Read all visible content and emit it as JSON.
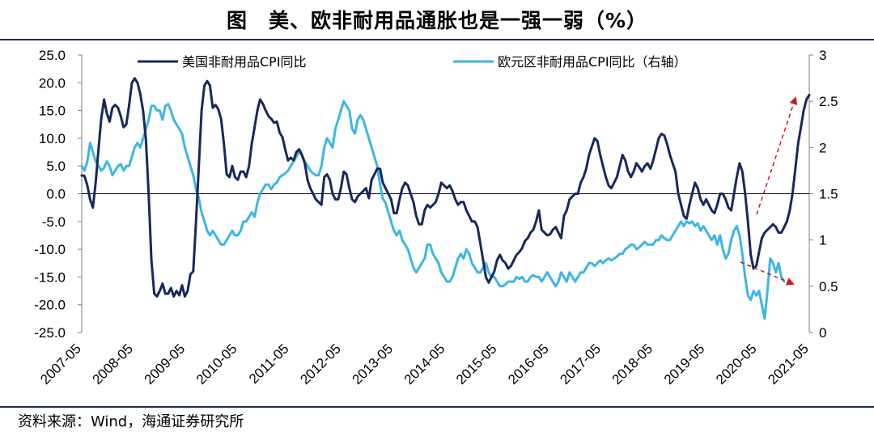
{
  "title": "图　美、欧非耐用品通胀也是一强一弱（%）",
  "source": "资料来源：Wind，海通证券研究所",
  "colors": {
    "us": "#17285e",
    "eu": "#3db6e4",
    "arrow": "#d4161c",
    "rule": "#1f2d4f"
  },
  "chart_data": {
    "type": "line",
    "x_ticks": [
      "2007-05",
      "2008-05",
      "2009-05",
      "2010-05",
      "2011-05",
      "2012-05",
      "2013-05",
      "2014-05",
      "2015-05",
      "2016-05",
      "2017-05",
      "2018-05",
      "2019-05",
      "2020-05",
      "2021-05"
    ],
    "y_left_ticks": [
      "25.0",
      "20.0",
      "15.0",
      "10.0",
      "5.0",
      "0.0",
      "-5.0",
      "-10.0",
      "-15.0",
      "-20.0",
      "-25.0"
    ],
    "y_right_ticks": [
      "3",
      "2.5",
      "2",
      "1.5",
      "1",
      "0.5",
      "0"
    ],
    "ylim_left": [
      -25,
      25
    ],
    "ylim_right": [
      0,
      3
    ],
    "grid": false,
    "legend_position": "top",
    "x_start": "2007-05",
    "series": [
      {
        "name": "美国非耐用品CPI同比",
        "axis": "left",
        "values": [
          3.3,
          3.2,
          1.5,
          -1.0,
          -2.5,
          2.0,
          8.0,
          13.5,
          17.0,
          14.5,
          13.0,
          15.5,
          16.0,
          15.5,
          14.0,
          12.0,
          12.5,
          16.0,
          20.0,
          20.8,
          20.0,
          18.0,
          15.0,
          10.0,
          0.0,
          -12.0,
          -18.0,
          -18.5,
          -17.5,
          -16.2,
          -18.0,
          -18.0,
          -17.0,
          -18.5,
          -17.5,
          -18.3,
          -16.5,
          -18.5,
          -17.5,
          -14.5,
          -14.0,
          -5.0,
          5.0,
          15.0,
          19.5,
          20.3,
          19.5,
          15.5,
          16.0,
          15.2,
          13.5,
          9.0,
          3.5,
          3.0,
          5.0,
          3.0,
          2.5,
          4.0,
          4.0,
          3.0,
          5.0,
          9.0,
          12.0,
          15.0,
          17.0,
          16.2,
          15.0,
          14.0,
          13.5,
          12.8,
          13.0,
          11.0,
          10.2,
          8.0,
          6.0,
          6.5,
          6.0,
          7.5,
          8.0,
          7.0,
          5.5,
          2.5,
          1.0,
          0.0,
          -1.0,
          -1.5,
          -2.0,
          3.0,
          3.5,
          2.5,
          0.0,
          -1.0,
          -1.0,
          1.0,
          4.0,
          3.5,
          1.0,
          -1.0,
          -1.5,
          -0.5,
          0.0,
          0.5,
          1.0,
          -0.8,
          2.5,
          3.5,
          4.5,
          4.5,
          2.0,
          1.0,
          0.0,
          -1.0,
          -3.5,
          -3.5,
          -1.0,
          1.0,
          2.0,
          1.5,
          0.0,
          -1.5,
          -4.0,
          -5.5,
          -5.5,
          -3.0,
          -2.0,
          -2.5,
          -2.0,
          -1.5,
          0.0,
          2.0,
          1.5,
          1.0,
          1.5,
          0.5,
          -1.0,
          -2.0,
          -1.5,
          -1.5,
          -3.0,
          -4.0,
          -5.0,
          -5.0,
          -6.0,
          -9.0,
          -12.0,
          -15.0,
          -16.0,
          -15.0,
          -14.0,
          -12.0,
          -11.0,
          -12.0,
          -12.5,
          -13.5,
          -13.0,
          -12.0,
          -11.0,
          -10.5,
          -9.8,
          -8.5,
          -8.0,
          -7.0,
          -6.5,
          -5.0,
          -3.0,
          -6.5,
          -7.0,
          -7.5,
          -7.3,
          -6.5,
          -6.0,
          -7.0,
          -8.0,
          -4.0,
          -3.0,
          -1.0,
          -0.5,
          0.0,
          0.0,
          2.0,
          3.0,
          4.5,
          7.0,
          8.5,
          10.0,
          9.5,
          7.0,
          5.0,
          3.0,
          1.5,
          1.0,
          2.0,
          3.0,
          5.0,
          7.0,
          6.0,
          4.0,
          3.0,
          4.0,
          5.5,
          4.8,
          4.0,
          5.0,
          5.5,
          4.5,
          6.0,
          8.0,
          10.0,
          10.8,
          10.5,
          9.0,
          7.0,
          5.5,
          4.0,
          0.0,
          -2.0,
          -4.0,
          -4.5,
          -2.0,
          0.0,
          2.0,
          1.0,
          -1.0,
          -2.0,
          -1.0,
          -2.0,
          -3.0,
          -3.5,
          -2.0,
          0.0,
          0.0,
          -1.0,
          -2.5,
          -3.0,
          0.0,
          3.0,
          5.5,
          4.0,
          0.0,
          -5.0,
          -11.0,
          -13.5,
          -13.0,
          -10.5,
          -8.0,
          -7.0,
          -6.5,
          -6.0,
          -5.5,
          -6.0,
          -7.0,
          -7.0,
          -6.0,
          -5.0,
          -3.0,
          0.0,
          4.5,
          9.0,
          12.0,
          15.0,
          17.0,
          17.8
        ]
      },
      {
        "name": "欧元区非耐用品CPI同比（右轴）",
        "axis": "right",
        "values": [
          1.8,
          1.75,
          1.85,
          2.05,
          1.95,
          1.85,
          1.8,
          1.75,
          1.78,
          1.85,
          1.8,
          1.7,
          1.75,
          1.8,
          1.82,
          1.75,
          1.8,
          1.8,
          1.9,
          2.0,
          2.05,
          2.0,
          2.1,
          2.2,
          2.3,
          2.45,
          2.45,
          2.4,
          2.4,
          2.3,
          2.45,
          2.47,
          2.4,
          2.3,
          2.25,
          2.2,
          2.15,
          2.0,
          1.9,
          1.8,
          1.7,
          1.55,
          1.45,
          1.3,
          1.2,
          1.1,
          1.05,
          1.1,
          1.05,
          1.0,
          0.95,
          0.95,
          1.0,
          1.05,
          1.1,
          1.05,
          1.05,
          1.1,
          1.2,
          1.2,
          1.25,
          1.3,
          1.25,
          1.4,
          1.5,
          1.55,
          1.6,
          1.6,
          1.55,
          1.6,
          1.62,
          1.68,
          1.7,
          1.72,
          1.75,
          1.8,
          1.85,
          1.9,
          1.95,
          1.92,
          1.85,
          1.8,
          1.75,
          1.72,
          1.7,
          1.7,
          1.8,
          2.0,
          2.1,
          2.05,
          2.0,
          2.2,
          2.3,
          2.4,
          2.5,
          2.45,
          2.4,
          2.2,
          2.15,
          2.3,
          2.35,
          2.3,
          2.2,
          2.1,
          2.0,
          1.9,
          1.8,
          1.6,
          1.45,
          1.4,
          1.3,
          1.2,
          1.1,
          1.05,
          1.1,
          1.0,
          0.95,
          0.9,
          0.8,
          0.7,
          0.65,
          0.7,
          0.75,
          0.8,
          0.95,
          0.95,
          0.85,
          0.8,
          0.75,
          0.65,
          0.6,
          0.55,
          0.55,
          0.6,
          0.7,
          0.8,
          0.85,
          0.8,
          0.9,
          0.85,
          0.75,
          0.7,
          0.65,
          0.65,
          0.7,
          0.75,
          0.65,
          0.6,
          0.6,
          0.55,
          0.5,
          0.5,
          0.52,
          0.55,
          0.55,
          0.55,
          0.6,
          0.58,
          0.6,
          0.55,
          0.55,
          0.6,
          0.62,
          0.6,
          0.6,
          0.55,
          0.6,
          0.65,
          0.6,
          0.55,
          0.5,
          0.55,
          0.65,
          0.6,
          0.55,
          0.65,
          0.6,
          0.55,
          0.6,
          0.65,
          0.65,
          0.7,
          0.75,
          0.75,
          0.72,
          0.75,
          0.78,
          0.75,
          0.78,
          0.8,
          0.78,
          0.8,
          0.82,
          0.85,
          0.85,
          0.9,
          0.92,
          0.95,
          0.95,
          0.9,
          0.92,
          0.95,
          0.98,
          0.95,
          0.95,
          0.95,
          1.0,
          1.0,
          1.05,
          1.02,
          1.0,
          1.0,
          1.05,
          1.1,
          1.15,
          1.2,
          1.15,
          1.2,
          1.18,
          1.2,
          1.15,
          1.18,
          1.1,
          1.15,
          1.1,
          1.05,
          1.0,
          1.05,
          0.95,
          1.05,
          0.9,
          0.8,
          0.85,
          1.0,
          1.1,
          1.15,
          1.05,
          0.85,
          0.6,
          0.4,
          0.35,
          0.45,
          0.4,
          0.45,
          0.3,
          0.15,
          0.45,
          0.8,
          0.75,
          0.65,
          0.75,
          0.6,
          0.55
        ]
      }
    ],
    "annotations": [
      "arrow-up-us",
      "arrow-down-eu"
    ]
  }
}
